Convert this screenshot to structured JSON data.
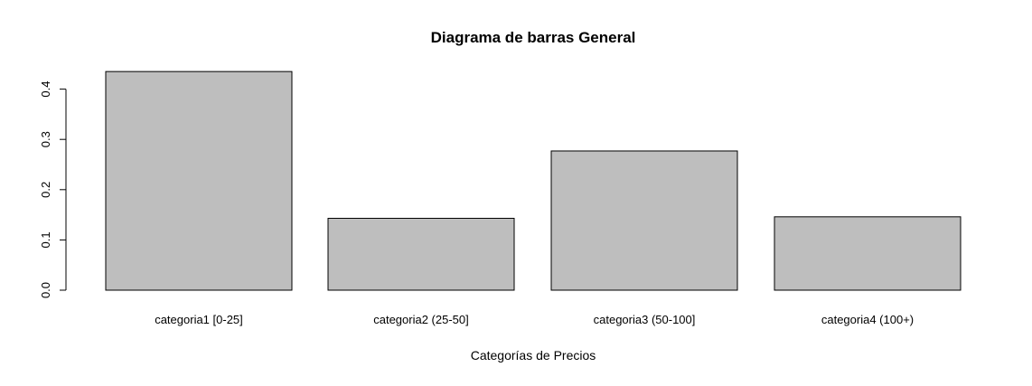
{
  "chart_data": {
    "type": "bar",
    "title": "Diagrama de barras General",
    "xlabel": "Categorías de Precios",
    "ylabel": "",
    "categories": [
      "categoria1 [0-25]",
      "categoria2 (25-50]",
      "categoria3 (50-100]",
      "categoria4 (100+)"
    ],
    "values": [
      0.435,
      0.143,
      0.277,
      0.146
    ],
    "ylim": [
      0,
      0.4
    ],
    "yticks": [
      "0.0",
      "0.1",
      "0.2",
      "0.3",
      "0.4"
    ],
    "grid": false,
    "legend": "none",
    "colors": {
      "bar_fill": "#bebebe",
      "bar_stroke": "#000000",
      "axis": "#000000",
      "background": "#ffffff"
    }
  }
}
